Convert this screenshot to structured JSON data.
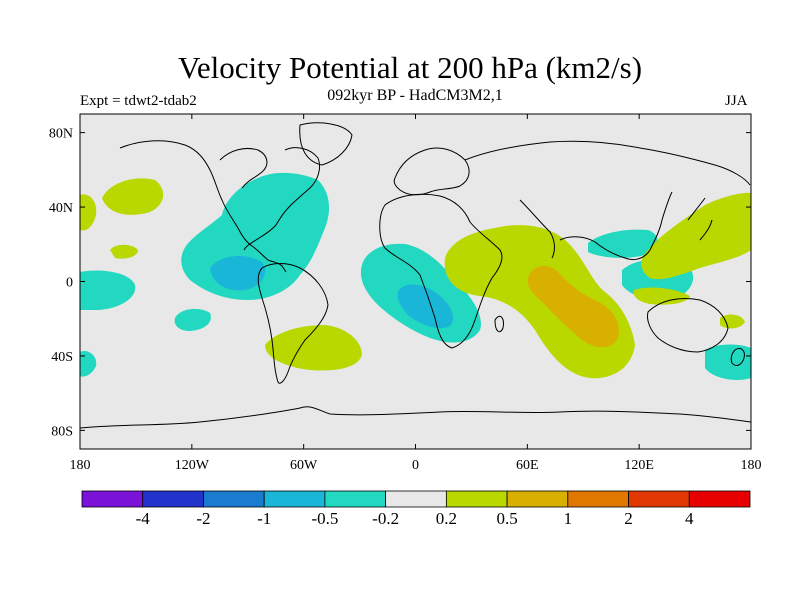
{
  "title": "Velocity Potential at 200 hPa (km2/s)",
  "subtitle": "092kyr BP - HadCM3M2,1",
  "experiment": "Expt = tdwt2-tdab2",
  "season": "JJA",
  "lat_labels": [
    "80N",
    "40N",
    "0",
    "40S",
    "80S"
  ],
  "lon_labels": [
    "180",
    "120W",
    "60W",
    "0",
    "60E",
    "120E",
    "180"
  ],
  "colorbar": {
    "colors": [
      "#7b12d8",
      "#2233cc",
      "#1a7ccf",
      "#1ab6d8",
      "#22d8c0",
      "#e8e8e8",
      "#b8d800",
      "#d8b000",
      "#e07800",
      "#e03800",
      "#e80000"
    ],
    "labels": [
      "-4",
      "-2",
      "-1",
      "-0.5",
      "-0.2",
      "0.2",
      "0.5",
      "1",
      "2",
      "4"
    ]
  },
  "map_colors": {
    "background": "#e8e8e8",
    "neg_light": "#22d8c0",
    "neg_mid": "#1ab6d8",
    "pos_light": "#b8d800",
    "pos_mid": "#d8b000",
    "coast": "#000000"
  }
}
